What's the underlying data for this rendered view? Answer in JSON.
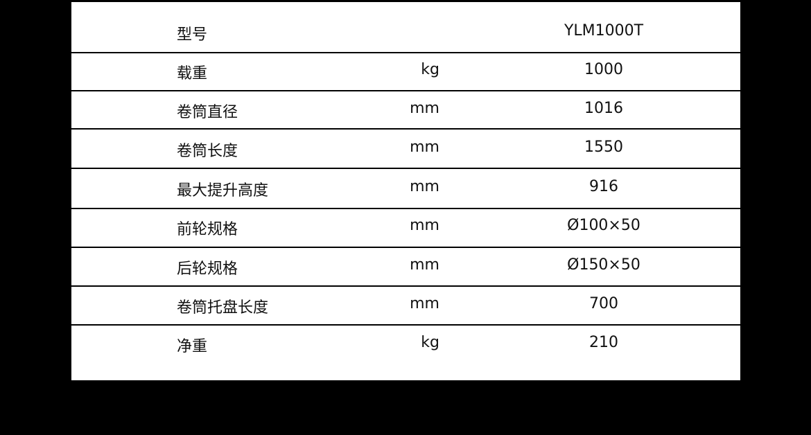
{
  "table": {
    "rows": [
      {
        "name": "型号",
        "unit": "",
        "value": "YLM1000T"
      },
      {
        "name": "载重",
        "unit": "kg",
        "value": "1000"
      },
      {
        "name": "卷筒直径",
        "unit": "mm",
        "value": "1016"
      },
      {
        "name": "卷筒长度",
        "unit": "mm",
        "value": "1550"
      },
      {
        "name": "最大提升高度",
        "unit": "mm",
        "value": "916"
      },
      {
        "name": "前轮规格",
        "unit": "mm",
        "value": "Ø100×50"
      },
      {
        "name": "后轮规格",
        "unit": "mm",
        "value": "Ø150×50"
      },
      {
        "name": "卷筒托盘长度",
        "unit": "mm",
        "value": "700"
      },
      {
        "name": "净重",
        "unit": "kg",
        "value": "210"
      }
    ]
  }
}
